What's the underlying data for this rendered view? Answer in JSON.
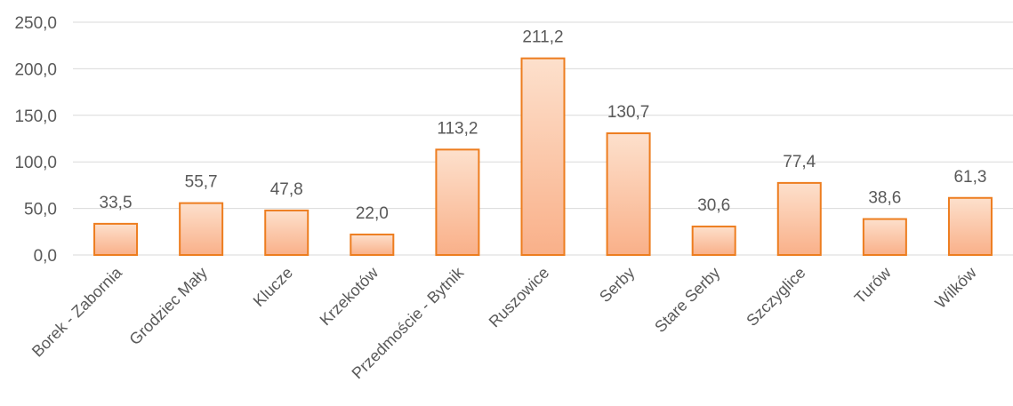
{
  "chart_data": {
    "type": "bar",
    "categories": [
      "Borek - Zabornia",
      "Grodziec Mały",
      "Klucze",
      "Krzekotów",
      "Przedmoście - Bytnik",
      "Ruszowice",
      "Serby",
      "Stare Serby",
      "Szczyglice",
      "Turów",
      "Wilków"
    ],
    "values": [
      33.5,
      55.7,
      47.8,
      22.0,
      113.2,
      211.2,
      130.7,
      30.6,
      77.4,
      38.6,
      61.3
    ],
    "value_labels": [
      "33,5",
      "55,7",
      "47,8",
      "22,0",
      "113,2",
      "211,2",
      "130,7",
      "30,6",
      "77,4",
      "38,6",
      "61,3"
    ],
    "y_ticks": [
      "0,0",
      "50,0",
      "100,0",
      "150,0",
      "200,0",
      "250,0"
    ],
    "ylim": [
      0,
      250
    ],
    "title": "",
    "xlabel": "",
    "ylabel": "",
    "grid": true,
    "legend": "none",
    "colors": {
      "bar_fill_top": "#fde0cc",
      "bar_fill_bottom": "#f9b089",
      "bar_stroke": "#ed7d1f",
      "grid": "#d9d9d9",
      "text": "#595959"
    }
  }
}
